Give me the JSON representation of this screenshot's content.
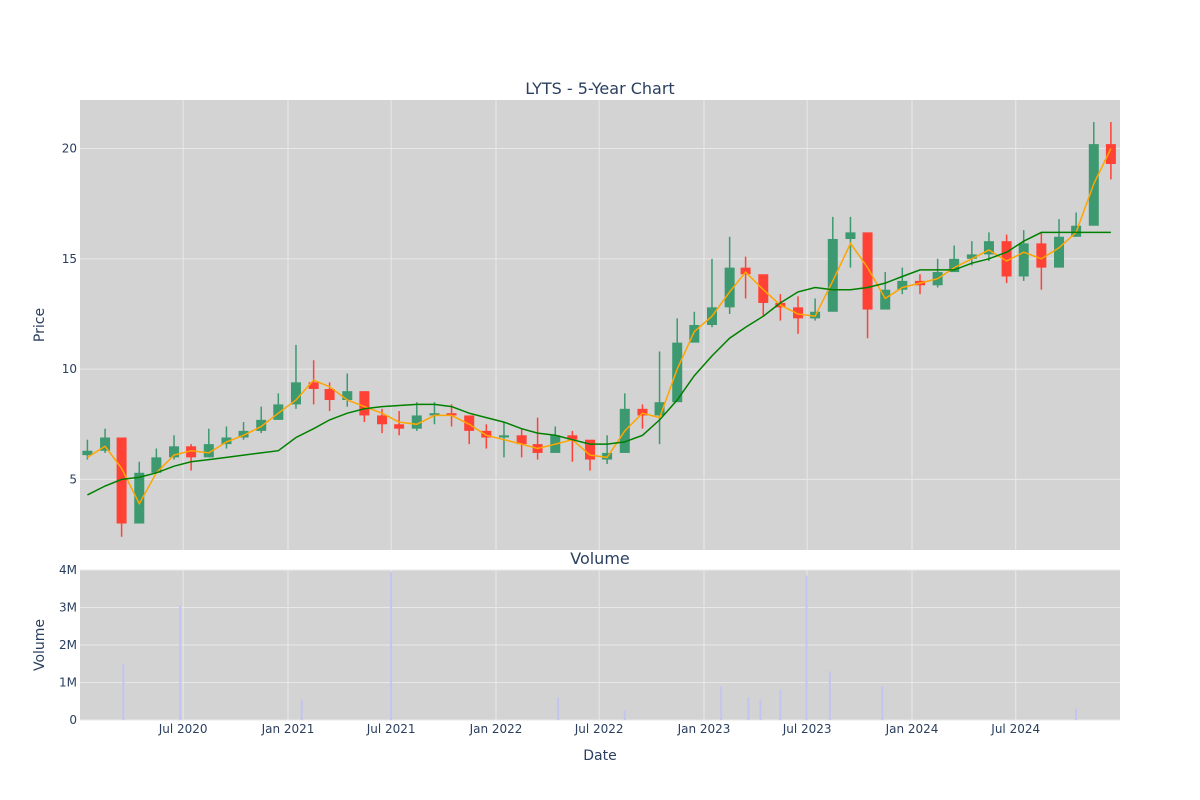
{
  "colors": {
    "background": "#ffffff",
    "plot_bg": "#d3d3d3",
    "grid": "#e8e8e8",
    "up": "#3d9970",
    "down": "#ff4136",
    "ma_short": "#ffa500",
    "ma_long": "#008000",
    "volume": "#c4c4f0",
    "text": "#2a3f5f"
  },
  "chart_data": [
    {
      "type": "candlestick",
      "title": "LYTS - 5-Year Chart",
      "xlabel": "",
      "ylabel": "Price",
      "x_range": [
        "2020-01-02",
        "2024-12-31"
      ],
      "ylim": [
        1.8,
        22.2
      ],
      "yticks": [
        5,
        10,
        15,
        20
      ],
      "y_tick_labels": [
        "5",
        "10",
        "15",
        "20"
      ],
      "grid": true,
      "legend": "none",
      "series": [
        {
          "kind": "candlestick",
          "x": [
            "2020-01",
            "2020-02",
            "2020-03",
            "2020-04",
            "2020-05",
            "2020-06",
            "2020-07",
            "2020-08",
            "2020-09",
            "2020-10",
            "2020-11",
            "2020-12",
            "2021-01",
            "2021-02",
            "2021-03",
            "2021-04",
            "2021-05",
            "2021-06",
            "2021-07",
            "2021-08",
            "2021-09",
            "2021-10",
            "2021-11",
            "2021-12",
            "2022-01",
            "2022-02",
            "2022-03",
            "2022-04",
            "2022-05",
            "2022-06",
            "2022-07",
            "2022-08",
            "2022-09",
            "2022-10",
            "2022-11",
            "2022-12",
            "2023-01",
            "2023-02",
            "2023-03",
            "2023-04",
            "2023-05",
            "2023-06",
            "2023-07",
            "2023-08",
            "2023-09",
            "2023-10",
            "2023-11",
            "2023-12",
            "2024-01",
            "2024-02",
            "2024-03",
            "2024-04",
            "2024-05",
            "2024-06",
            "2024-07",
            "2024-08",
            "2024-09",
            "2024-10",
            "2024-11",
            "2024-12"
          ],
          "close": [
            6.3,
            6.9,
            3.0,
            5.3,
            6.0,
            6.5,
            6.0,
            6.6,
            6.9,
            7.2,
            7.7,
            8.4,
            9.4,
            9.1,
            8.6,
            9.0,
            7.9,
            7.5,
            7.3,
            7.9,
            8.0,
            7.9,
            7.2,
            6.9,
            7.0,
            6.6,
            6.2,
            7.0,
            6.8,
            5.9,
            6.2,
            8.2,
            7.9,
            8.5,
            11.2,
            12.0,
            12.8,
            14.6,
            14.3,
            13.0,
            12.8,
            12.3,
            12.6,
            15.9,
            16.2,
            12.7,
            13.6,
            14.0,
            13.8,
            14.4,
            15.0,
            15.2,
            15.8,
            14.2,
            15.7,
            14.6,
            16.0,
            16.5,
            20.2,
            19.3
          ],
          "high": [
            6.8,
            7.3,
            6.2,
            5.8,
            6.4,
            7.0,
            6.6,
            7.3,
            7.4,
            7.6,
            8.3,
            8.9,
            11.1,
            10.4,
            9.4,
            9.8,
            8.6,
            8.2,
            8.1,
            8.5,
            8.5,
            8.4,
            7.8,
            7.5,
            7.6,
            7.3,
            7.8,
            7.4,
            7.2,
            6.5,
            7.0,
            8.9,
            8.4,
            10.8,
            12.3,
            12.6,
            15.0,
            16.0,
            15.1,
            13.8,
            13.4,
            13.3,
            13.2,
            16.9,
            16.9,
            14.1,
            14.4,
            14.6,
            14.3,
            15.0,
            15.6,
            15.8,
            16.2,
            16.1,
            16.3,
            16.2,
            16.8,
            17.1,
            21.2,
            21.2
          ],
          "low": [
            5.9,
            6.2,
            2.4,
            3.4,
            5.4,
            5.9,
            5.4,
            6.0,
            6.4,
            6.8,
            7.1,
            7.7,
            8.2,
            8.4,
            8.1,
            8.3,
            7.6,
            7.1,
            7.0,
            7.2,
            7.5,
            7.4,
            6.6,
            6.4,
            6.0,
            6.0,
            5.9,
            6.5,
            5.8,
            5.4,
            5.7,
            6.2,
            7.3,
            6.6,
            9.8,
            11.5,
            11.9,
            12.5,
            13.2,
            12.4,
            12.2,
            11.6,
            12.2,
            13.9,
            14.6,
            11.4,
            12.8,
            13.4,
            13.4,
            13.7,
            14.4,
            14.7,
            14.9,
            13.9,
            14.0,
            13.6,
            14.8,
            16.0,
            17.3,
            18.6
          ]
        },
        {
          "kind": "line",
          "x": [
            "2020-01",
            "2020-02",
            "2020-03",
            "2020-04",
            "2020-05",
            "2020-06",
            "2020-07",
            "2020-08",
            "2020-09",
            "2020-10",
            "2020-11",
            "2020-12",
            "2021-01",
            "2021-02",
            "2021-03",
            "2021-04",
            "2021-05",
            "2021-06",
            "2021-07",
            "2021-08",
            "2021-09",
            "2021-10",
            "2021-11",
            "2021-12",
            "2022-01",
            "2022-02",
            "2022-03",
            "2022-04",
            "2022-05",
            "2022-06",
            "2022-07",
            "2022-08",
            "2022-09",
            "2022-10",
            "2022-11",
            "2022-12",
            "2023-01",
            "2023-02",
            "2023-03",
            "2023-04",
            "2023-05",
            "2023-06",
            "2023-07",
            "2023-08",
            "2023-09",
            "2023-10",
            "2023-11",
            "2023-12",
            "2024-01",
            "2024-02",
            "2024-03",
            "2024-04",
            "2024-05",
            "2024-06",
            "2024-07",
            "2024-08",
            "2024-09",
            "2024-10",
            "2024-11",
            "2024-12"
          ],
          "y": [
            6.0,
            6.5,
            5.5,
            3.9,
            5.3,
            6.1,
            6.3,
            6.2,
            6.7,
            7.0,
            7.4,
            8.0,
            8.6,
            9.5,
            9.2,
            8.6,
            8.3,
            8.0,
            7.6,
            7.5,
            7.9,
            7.9,
            7.5,
            7.0,
            6.8,
            6.6,
            6.4,
            6.6,
            6.8,
            6.1,
            6.0,
            7.2,
            8.0,
            7.8,
            10.0,
            11.7,
            12.4,
            13.5,
            14.4,
            13.6,
            12.9,
            12.5,
            12.4,
            14.0,
            15.7,
            14.6,
            13.2,
            13.7,
            13.9,
            14.1,
            14.6,
            15.0,
            15.4,
            14.9,
            15.3,
            15.0,
            15.5,
            16.2,
            18.4,
            20.0
          ]
        },
        {
          "kind": "line",
          "x": [
            "2020-01",
            "2020-02",
            "2020-03",
            "2020-04",
            "2020-05",
            "2020-06",
            "2020-07",
            "2020-08",
            "2020-09",
            "2020-10",
            "2020-11",
            "2020-12",
            "2021-01",
            "2021-02",
            "2021-03",
            "2021-04",
            "2021-05",
            "2021-06",
            "2021-07",
            "2021-08",
            "2021-09",
            "2021-10",
            "2021-11",
            "2021-12",
            "2022-01",
            "2022-02",
            "2022-03",
            "2022-04",
            "2022-05",
            "2022-06",
            "2022-07",
            "2022-08",
            "2022-09",
            "2022-10",
            "2022-11",
            "2022-12",
            "2023-01",
            "2023-02",
            "2023-03",
            "2023-04",
            "2023-05",
            "2023-06",
            "2023-07",
            "2023-08",
            "2023-09",
            "2023-10",
            "2023-11",
            "2023-12",
            "2024-01",
            "2024-02",
            "2024-03",
            "2024-04",
            "2024-05",
            "2024-06",
            "2024-07",
            "2024-08",
            "2024-09",
            "2024-10",
            "2024-11",
            "2024-12"
          ],
          "y": [
            4.3,
            4.7,
            5.0,
            5.1,
            5.3,
            5.6,
            5.8,
            5.9,
            6.0,
            6.1,
            6.2,
            6.3,
            6.9,
            7.3,
            7.7,
            8.0,
            8.2,
            8.3,
            8.35,
            8.4,
            8.4,
            8.3,
            8.0,
            7.8,
            7.6,
            7.3,
            7.1,
            7.0,
            6.8,
            6.6,
            6.6,
            6.7,
            7.0,
            7.7,
            8.6,
            9.7,
            10.6,
            11.4,
            11.9,
            12.4,
            13.0,
            13.5,
            13.7,
            13.6,
            13.6,
            13.7,
            13.9,
            14.2,
            14.5,
            14.5,
            14.5,
            14.8,
            15.0,
            15.3,
            15.8,
            16.2,
            16.2,
            16.2,
            16.2,
            16.2
          ]
        }
      ]
    },
    {
      "type": "bar",
      "title": "Volume",
      "xlabel": "Date",
      "ylabel": "Volume",
      "ylim": [
        0,
        4000000
      ],
      "yticks": [
        0,
        1000000,
        2000000,
        3000000,
        4000000
      ],
      "y_tick_labels": [
        "0",
        "1M",
        "2M",
        "3M",
        "4M"
      ],
      "x_tick_dates": [
        "2020-07-01",
        "2021-01-01",
        "2021-07-01",
        "2022-01-01",
        "2022-07-01",
        "2023-01-01",
        "2023-07-01",
        "2024-01-01",
        "2024-07-01"
      ],
      "x_tick_labels": [
        "Jul 2020",
        "Jan 2021",
        "Jul 2021",
        "Jan 2022",
        "Jul 2022",
        "Jan 2023",
        "Jul 2023",
        "Jan 2024",
        "Jul 2024"
      ],
      "grid": true,
      "series": [
        {
          "x": [
            "2020-03-18",
            "2020-06-26",
            "2021-07-01",
            "2023-06-30",
            "2023-08-10",
            "2023-11-10",
            "2023-05-15",
            "2023-01-31",
            "2021-01-25",
            "2022-04-20",
            "2024-10-15",
            "2022-08-15",
            "2023-03-20",
            "2023-04-10"
          ],
          "values": [
            1500000,
            3050000,
            3950000,
            3850000,
            1300000,
            900000,
            800000,
            900000,
            550000,
            600000,
            300000,
            250000,
            600000,
            550000
          ]
        }
      ]
    }
  ]
}
